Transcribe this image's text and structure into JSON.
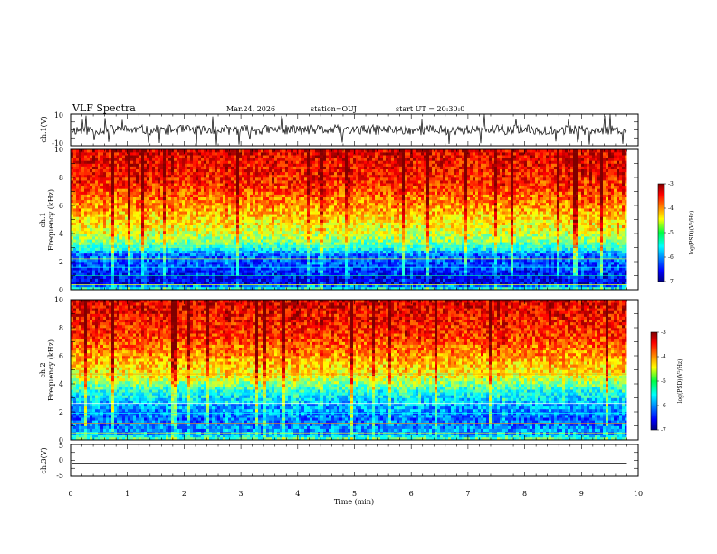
{
  "header": {
    "title": "VLF Spectra",
    "date": "Mar.24, 2026",
    "station": "station=OUJ",
    "start": "start UT = 20:30:0"
  },
  "chart_data": [
    {
      "id": "ch1-waveform",
      "type": "line",
      "ylabel": "ch.1(V)",
      "ylim": [
        -10,
        10
      ],
      "yticks": [
        "10",
        "-10"
      ],
      "description_of_trace": "noisy waveform near 0 V with spikes",
      "trace_values": {
        "mean": 0,
        "typical_amplitude": 2,
        "spike_peak": 10
      },
      "xlim": [
        0,
        10
      ]
    },
    {
      "id": "ch1-spectrogram",
      "type": "heatmap",
      "ylabel_line1": "ch.1",
      "ylabel_line2": "Frequency (kHz)",
      "ylim": [
        0,
        10
      ],
      "yticks": [
        "0",
        "2",
        "4",
        "6",
        "8",
        "10"
      ],
      "xlim": [
        0,
        9.8
      ],
      "colorbar": {
        "label": "log(PSD)(V²/Hz)",
        "ticks": [
          "-3",
          "-4",
          "-5",
          "-6",
          "-7"
        ],
        "range": [
          -7,
          -3
        ]
      },
      "profile_khz_logpsd": [
        [
          0,
          -5.2
        ],
        [
          0.5,
          -6.6
        ],
        [
          1.5,
          -6.3
        ],
        [
          2.5,
          -6.1
        ],
        [
          3,
          -5.3
        ],
        [
          4,
          -4.7
        ],
        [
          5,
          -4.4
        ],
        [
          6,
          -4.1
        ],
        [
          7.5,
          -3.7
        ],
        [
          10,
          -3.4
        ]
      ]
    },
    {
      "id": "ch2-spectrogram",
      "type": "heatmap",
      "ylabel_line1": "ch.2",
      "ylabel_line2": "Frequency (kHz)",
      "ylim": [
        0,
        10
      ],
      "yticks": [
        "0",
        "2",
        "4",
        "6",
        "8",
        "10"
      ],
      "xlim": [
        0,
        9.8
      ],
      "colorbar": {
        "label": "log(PSD)(V²/Hz)",
        "ticks": [
          "-3",
          "-4",
          "-5",
          "-6",
          "-7"
        ],
        "range": [
          -7,
          -3
        ]
      },
      "profile_khz_logpsd": [
        [
          0,
          -5.0
        ],
        [
          0.5,
          -5.9
        ],
        [
          1.5,
          -6.1
        ],
        [
          2.5,
          -5.8
        ],
        [
          3.5,
          -5.4
        ],
        [
          4.5,
          -4.6
        ],
        [
          6,
          -4.1
        ],
        [
          7.5,
          -3.7
        ],
        [
          10,
          -3.4
        ]
      ]
    },
    {
      "id": "ch3-waveform",
      "type": "line",
      "ylabel": "ch.3(V)",
      "ylim": [
        -5,
        5
      ],
      "yticks": [
        "5",
        "0",
        "-5"
      ],
      "trace_values": {
        "constant": -1
      },
      "xlim": [
        0,
        9.8
      ],
      "xlabel": "Time (min)",
      "xticks": [
        "0",
        "1",
        "2",
        "3",
        "4",
        "5",
        "6",
        "7",
        "8",
        "9",
        "10"
      ]
    }
  ]
}
